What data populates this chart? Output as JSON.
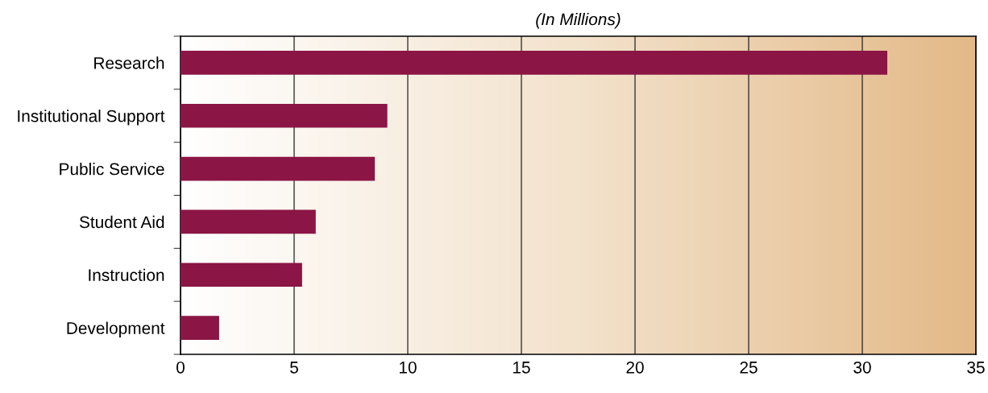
{
  "chart_data": {
    "type": "bar",
    "orientation": "horizontal",
    "title": "(In Millions)",
    "categories": [
      "Research",
      "Institutional Support",
      "Public Service",
      "Student Aid",
      "Instruction",
      "Development"
    ],
    "values": [
      31.1,
      9.1,
      8.55,
      5.95,
      5.35,
      1.7
    ],
    "color": "#8b1545",
    "xlim": [
      0,
      35
    ],
    "xticks": [
      0,
      5,
      10,
      15,
      20,
      25,
      30,
      35
    ],
    "grid": "x",
    "legend": false
  }
}
